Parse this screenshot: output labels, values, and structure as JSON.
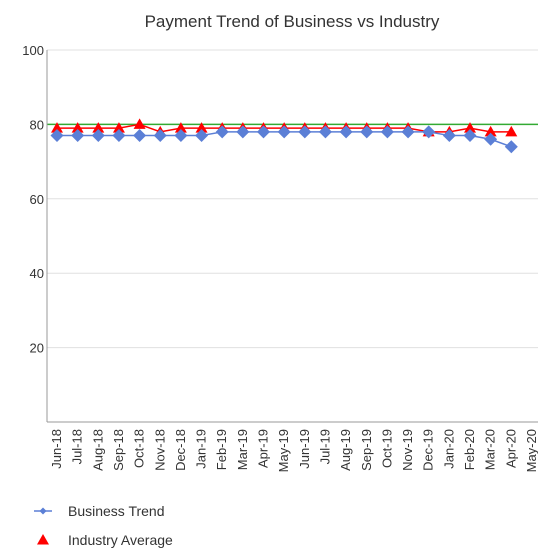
{
  "chart_data": {
    "type": "line",
    "title": "Payment Trend of Business vs Industry",
    "xlabel": "",
    "ylabel": "",
    "ylim": [
      0,
      100
    ],
    "yticks": [
      20,
      40,
      60,
      80,
      100
    ],
    "grid": true,
    "legend_position": "bottom-left",
    "categories": [
      "Jun-18",
      "Jul-18",
      "Aug-18",
      "Sep-18",
      "Oct-18",
      "Nov-18",
      "Dec-18",
      "Jan-19",
      "Feb-19",
      "Mar-19",
      "Apr-19",
      "May-19",
      "Jun-19",
      "Jul-19",
      "Aug-19",
      "Sep-19",
      "Oct-19",
      "Nov-19",
      "Dec-19",
      "Jan-20",
      "Feb-20",
      "Mar-20",
      "Apr-20",
      "May-20"
    ],
    "series": [
      {
        "name": "Business Trend",
        "color": "#5b7fd6",
        "marker": "diamond",
        "values": [
          77,
          77,
          77,
          77,
          77,
          77,
          77,
          77,
          78,
          78,
          78,
          78,
          78,
          78,
          78,
          78,
          78,
          78,
          78,
          77,
          77,
          76,
          74,
          null
        ]
      },
      {
        "name": "Industry Average",
        "color": "#ff0000",
        "marker": "triangle",
        "values": [
          79,
          79,
          79,
          79,
          80,
          78,
          79,
          79,
          79,
          79,
          79,
          79,
          79,
          79,
          79,
          79,
          79,
          79,
          78,
          78,
          79,
          78,
          78,
          null
        ]
      }
    ],
    "reference_line": {
      "value": 80,
      "color": "#33aa33"
    },
    "axis_color": "#999999",
    "grid_color": "#e0e0e0"
  }
}
